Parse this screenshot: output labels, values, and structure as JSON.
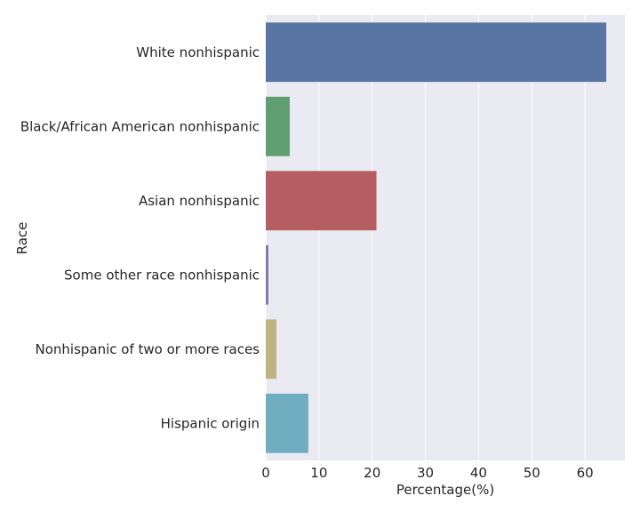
{
  "chart_data": {
    "type": "bar",
    "orientation": "horizontal",
    "title": "",
    "xlabel": "Percentage(%)",
    "ylabel": "Race",
    "xlim": [
      0,
      67.5
    ],
    "xticks": [
      "0",
      "10",
      "20",
      "30",
      "40",
      "50",
      "60"
    ],
    "categories": [
      "White nonhispanic",
      "Black/African American nonhispanic",
      "Asian nonhispanic",
      "Some other race nonhispanic",
      "Nonhispanic of two or more races",
      "Hispanic origin"
    ],
    "values": [
      64.0,
      4.5,
      20.8,
      0.5,
      2.0,
      8.0
    ],
    "colors": [
      "#5975a4",
      "#5f9e6e",
      "#b55d60",
      "#857aab",
      "#c1b37f",
      "#6eaec0"
    ],
    "grid": true,
    "background": "#eaeaf2"
  }
}
